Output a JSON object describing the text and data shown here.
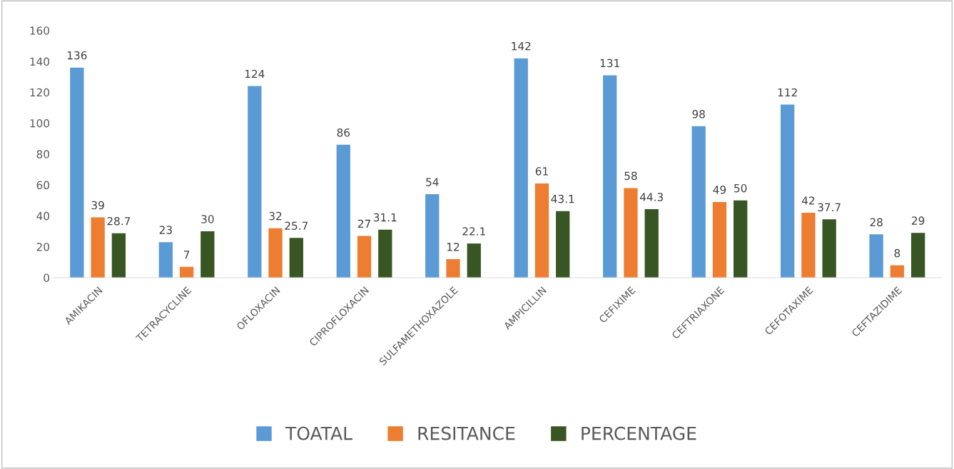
{
  "chart_data": {
    "type": "bar",
    "categories": [
      "AMIKACIN",
      "TETRACYCLINE",
      "OFLOXACIN",
      "CIPROFLOXACIN",
      "SULFAMETHOXAZOLE",
      "AMPICILLIN",
      "CEFIXIME",
      "CEFTRIAXONE",
      "CEFOTAXIME",
      "CEFTAZIDIME"
    ],
    "series": [
      {
        "name": "TOATAL",
        "color": "#5b9bd5",
        "values": [
          136,
          23,
          124,
          86,
          54,
          142,
          131,
          98,
          112,
          28
        ]
      },
      {
        "name": "RESITANCE",
        "color": "#ed7d31",
        "values": [
          39,
          7,
          32,
          27,
          12,
          61,
          58,
          49,
          42,
          8
        ]
      },
      {
        "name": "PERCENTAGE",
        "color": "#375623",
        "values": [
          28.7,
          30,
          25.7,
          31.1,
          22.1,
          43.1,
          44.3,
          50,
          37.7,
          29
        ]
      }
    ],
    "ylim": [
      0,
      160
    ],
    "yticks": [
      0,
      20,
      40,
      60,
      80,
      100,
      120,
      140,
      160
    ],
    "data_labels": true,
    "grid": false,
    "legend": "bottom"
  }
}
